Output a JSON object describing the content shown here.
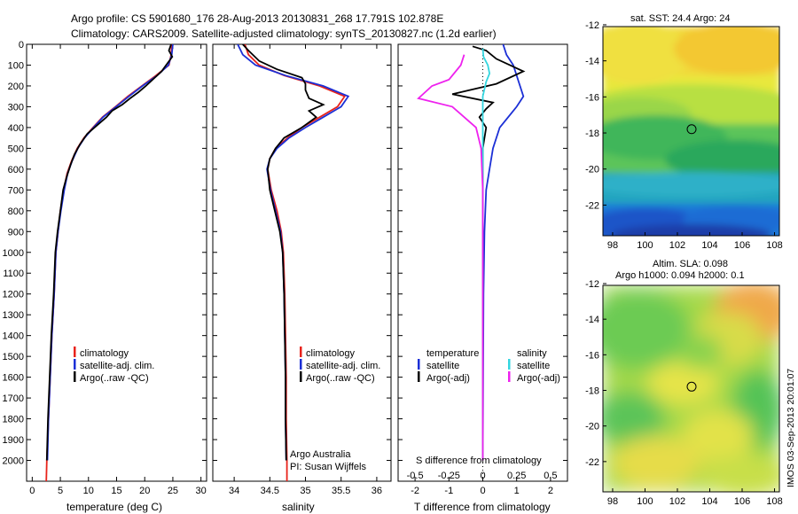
{
  "title": {
    "line1": "Argo profile: CS 5901680_176 28-Aug-2013 20130831_268 17.791S 102.878E",
    "line2": "Climatology: CARS2009. Satellite-adjusted climatology: synTS_20130827.nc (1.2d earlier)"
  },
  "colors": {
    "climatology": "#e8231b",
    "satellite": "#1b2fd6",
    "argo": "#000000",
    "sal_satellite": "#33d6e0",
    "sal_argo": "#ee22ee"
  },
  "chart_data": [
    {
      "type": "line",
      "name": "temperature-profile",
      "xlabel": "temperature (deg C)",
      "ylabel": "",
      "xlim": [
        -1,
        31
      ],
      "ylim": [
        2100,
        0
      ],
      "xticks": [
        0,
        5,
        10,
        15,
        20,
        25,
        30
      ],
      "yticks": [
        0,
        100,
        200,
        300,
        400,
        500,
        600,
        700,
        800,
        900,
        1000,
        1100,
        1200,
        1300,
        1400,
        1500,
        1600,
        1700,
        1800,
        1900,
        2000
      ],
      "legend": [
        "climatology",
        "satellite-adj. clim.",
        "Argo(..raw -QC)"
      ],
      "series": [
        {
          "name": "climatology",
          "points": [
            [
              24.8,
              0
            ],
            [
              24.7,
              50
            ],
            [
              24.3,
              100
            ],
            [
              22,
              150
            ],
            [
              19.5,
              200
            ],
            [
              17,
              250
            ],
            [
              14.8,
              300
            ],
            [
              12.5,
              350
            ],
            [
              10.8,
              400
            ],
            [
              9.2,
              450
            ],
            [
              8.0,
              500
            ],
            [
              7.0,
              560
            ],
            [
              6.2,
              620
            ],
            [
              5.6,
              700
            ],
            [
              5.0,
              800
            ],
            [
              4.6,
              900
            ],
            [
              4.2,
              1000
            ],
            [
              3.9,
              1200
            ],
            [
              3.5,
              1400
            ],
            [
              3.2,
              1600
            ],
            [
              2.9,
              1800
            ],
            [
              2.6,
              2000
            ],
            [
              2.5,
              2100
            ]
          ]
        },
        {
          "name": "satellite",
          "points": [
            [
              25.0,
              0
            ],
            [
              24.8,
              50
            ],
            [
              24.2,
              100
            ],
            [
              22.2,
              150
            ],
            [
              19.6,
              200
            ],
            [
              17.2,
              250
            ],
            [
              14.9,
              300
            ],
            [
              12.6,
              350
            ],
            [
              10.9,
              400
            ],
            [
              9.3,
              450
            ],
            [
              8.1,
              500
            ],
            [
              7.1,
              560
            ],
            [
              6.3,
              620
            ],
            [
              5.7,
              700
            ],
            [
              5.1,
              800
            ],
            [
              4.6,
              900
            ],
            [
              4.2,
              1000
            ],
            [
              3.9,
              1200
            ],
            [
              3.5,
              1400
            ],
            [
              3.2,
              1600
            ],
            [
              2.9,
              1800
            ],
            [
              2.7,
              2000
            ]
          ]
        },
        {
          "name": "argo",
          "points": [
            [
              24.7,
              0
            ],
            [
              24.3,
              30
            ],
            [
              24.9,
              60
            ],
            [
              23.8,
              100
            ],
            [
              23.0,
              130
            ],
            [
              21.8,
              160
            ],
            [
              20.2,
              200
            ],
            [
              18.9,
              230
            ],
            [
              17.4,
              260
            ],
            [
              16.0,
              290
            ],
            [
              14.2,
              320
            ],
            [
              13.2,
              350
            ],
            [
              11.5,
              390
            ],
            [
              9.8,
              430
            ],
            [
              8.5,
              480
            ],
            [
              7.5,
              530
            ],
            [
              6.8,
              580
            ],
            [
              6.1,
              640
            ],
            [
              5.5,
              700
            ],
            [
              5.0,
              800
            ],
            [
              4.5,
              900
            ],
            [
              4.1,
              1000
            ],
            [
              3.8,
              1200
            ],
            [
              3.4,
              1400
            ],
            [
              3.1,
              1600
            ],
            [
              2.8,
              1800
            ],
            [
              2.6,
              2000
            ]
          ]
        }
      ]
    },
    {
      "type": "line",
      "name": "salinity-profile",
      "xlabel": "salinity",
      "xlim": [
        33.7,
        36.2
      ],
      "ylim": [
        2100,
        0
      ],
      "xticks": [
        34,
        34.5,
        35,
        35.5,
        36
      ],
      "legend": [
        "climatology",
        "satellite-adj. clim.",
        "Argo(..raw -QC)"
      ],
      "annotations": [
        "Argo Australia",
        "PI: Susan Wijffels"
      ],
      "series": [
        {
          "name": "climatology",
          "points": [
            [
              34.15,
              0
            ],
            [
              34.2,
              50
            ],
            [
              34.35,
              100
            ],
            [
              34.7,
              150
            ],
            [
              35.2,
              200
            ],
            [
              35.55,
              250
            ],
            [
              35.45,
              300
            ],
            [
              35.2,
              350
            ],
            [
              34.95,
              400
            ],
            [
              34.75,
              450
            ],
            [
              34.58,
              500
            ],
            [
              34.5,
              550
            ],
            [
              34.47,
              600
            ],
            [
              34.52,
              700
            ],
            [
              34.6,
              800
            ],
            [
              34.66,
              900
            ],
            [
              34.69,
              1000
            ],
            [
              34.71,
              1200
            ],
            [
              34.72,
              1400
            ],
            [
              34.73,
              1600
            ],
            [
              34.73,
              1800
            ],
            [
              34.74,
              2000
            ],
            [
              34.74,
              2100
            ]
          ]
        },
        {
          "name": "satellite",
          "points": [
            [
              34.05,
              0
            ],
            [
              34.12,
              50
            ],
            [
              34.3,
              100
            ],
            [
              34.72,
              150
            ],
            [
              35.25,
              200
            ],
            [
              35.6,
              250
            ],
            [
              35.5,
              300
            ],
            [
              35.25,
              350
            ],
            [
              35.0,
              400
            ],
            [
              34.77,
              450
            ],
            [
              34.6,
              500
            ],
            [
              34.5,
              550
            ],
            [
              34.46,
              600
            ],
            [
              34.51,
              700
            ],
            [
              34.58,
              800
            ],
            [
              34.65,
              900
            ],
            [
              34.68,
              1000
            ],
            [
              34.7,
              1200
            ],
            [
              34.71,
              1400
            ],
            [
              34.72,
              1600
            ],
            [
              34.72,
              1800
            ],
            [
              34.73,
              2000
            ]
          ]
        },
        {
          "name": "argo",
          "points": [
            [
              34.12,
              0
            ],
            [
              34.2,
              30
            ],
            [
              34.35,
              80
            ],
            [
              34.6,
              120
            ],
            [
              34.95,
              160
            ],
            [
              35.0,
              190
            ],
            [
              35.0,
              220
            ],
            [
              35.05,
              260
            ],
            [
              35.25,
              290
            ],
            [
              35.05,
              320
            ],
            [
              35.15,
              350
            ],
            [
              34.95,
              400
            ],
            [
              34.7,
              450
            ],
            [
              34.58,
              500
            ],
            [
              34.5,
              550
            ],
            [
              34.47,
              600
            ],
            [
              34.5,
              700
            ],
            [
              34.57,
              800
            ],
            [
              34.64,
              900
            ],
            [
              34.68,
              1000
            ],
            [
              34.7,
              1200
            ],
            [
              34.71,
              1400
            ],
            [
              34.72,
              1600
            ],
            [
              34.72,
              1800
            ],
            [
              34.73,
              2000
            ]
          ]
        }
      ]
    },
    {
      "type": "line",
      "name": "difference-profile",
      "xlabel": "T difference from climatology",
      "xlabel_top": "S difference from climatology",
      "xlim": [
        -2.5,
        2.5
      ],
      "ylim": [
        2100,
        0
      ],
      "xticks": [
        -2,
        -1,
        0,
        1,
        2
      ],
      "xticks_top": [
        -0.5,
        -0.25,
        0,
        0.25,
        0.5
      ],
      "legend_groups": [
        {
          "title": "temperature",
          "items": [
            "satellite",
            "Argo(-adj)"
          ]
        },
        {
          "title": "salinity",
          "items": [
            "satellite",
            "Argo(-adj)"
          ]
        }
      ],
      "series": [
        {
          "name": "temperature satellite",
          "points": [
            [
              0.6,
              0
            ],
            [
              0.7,
              50
            ],
            [
              0.9,
              100
            ],
            [
              1.1,
              200
            ],
            [
              1.2,
              250
            ],
            [
              1.0,
              300
            ],
            [
              0.5,
              400
            ],
            [
              0.3,
              500
            ],
            [
              0.2,
              600
            ],
            [
              0.1,
              700
            ],
            [
              0.05,
              900
            ],
            [
              0.02,
              1200
            ],
            [
              0.01,
              1600
            ],
            [
              0,
              2000
            ]
          ]
        },
        {
          "name": "temperature argo",
          "points": [
            [
              -0.3,
              10
            ],
            [
              0.1,
              30
            ],
            [
              0.4,
              70
            ],
            [
              1.2,
              130
            ],
            [
              0.4,
              190
            ],
            [
              -0.9,
              240
            ],
            [
              0.3,
              280
            ],
            [
              0.1,
              310
            ],
            [
              -0.1,
              350
            ],
            [
              0.1,
              400
            ],
            [
              0.0,
              500
            ],
            [
              0.0,
              700
            ],
            [
              0.0,
              1000
            ],
            [
              0.0,
              1500
            ],
            [
              0.0,
              2000
            ]
          ]
        },
        {
          "name": "salinity satellite",
          "points": [
            [
              0,
              20
            ],
            [
              0.02,
              60
            ],
            [
              0.15,
              100
            ],
            [
              0.2,
              140
            ],
            [
              0.1,
              180
            ],
            [
              0,
              250
            ],
            [
              0,
              400
            ],
            [
              0,
              700
            ],
            [
              0,
              1000
            ],
            [
              0,
              1500
            ],
            [
              0,
              2000
            ]
          ]
        },
        {
          "name": "salinity argo",
          "points": [
            [
              -0.55,
              50
            ],
            [
              -0.65,
              100
            ],
            [
              -1.0,
              170
            ],
            [
              -1.5,
              200
            ],
            [
              -1.9,
              260
            ],
            [
              -0.9,
              300
            ],
            [
              -0.2,
              400
            ],
            [
              -0.05,
              500
            ],
            [
              0,
              700
            ],
            [
              0,
              1000
            ],
            [
              0,
              1500
            ],
            [
              0,
              2000
            ]
          ]
        }
      ]
    },
    {
      "type": "heatmap",
      "name": "sst-map",
      "title": "sat. SST: 24.4  Argo: 24",
      "xlim": [
        97.4,
        108.3
      ],
      "ylim": [
        -23.7,
        -12.1
      ],
      "xticks": [
        98,
        100,
        102,
        104,
        106,
        108
      ],
      "yticks": [
        -12,
        -14,
        -16,
        -18,
        -20,
        -22
      ],
      "marker": [
        102.878,
        -17.791
      ]
    },
    {
      "type": "heatmap",
      "name": "sla-map",
      "title_lines": [
        "Altim. SLA: 0.098",
        "Argo h1000: 0.094  h2000: 0.1"
      ],
      "xlim": [
        97.4,
        108.3
      ],
      "ylim": [
        -23.7,
        -12.1
      ],
      "xticks": [
        98,
        100,
        102,
        104,
        106,
        108
      ],
      "yticks": [
        -12,
        -14,
        -16,
        -18,
        -20,
        -22
      ],
      "marker": [
        102.878,
        -17.791
      ]
    }
  ],
  "credit": "IMOS 03-Sep-2013 20:01:07"
}
